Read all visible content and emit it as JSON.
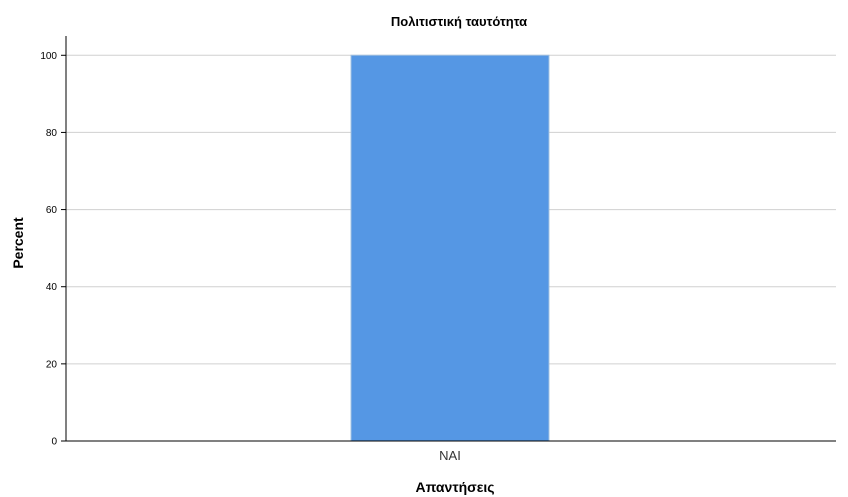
{
  "chart_data": {
    "type": "bar",
    "title": "Πολιτιστική ταυτότητα",
    "xlabel": "Απαντήσεις",
    "ylabel": "Percent",
    "categories": [
      "ΝΑΙ"
    ],
    "values": [
      100
    ],
    "ylim": [
      0,
      105
    ],
    "yticks": [
      0,
      20,
      40,
      60,
      80,
      100
    ],
    "grid": true,
    "legend": "none",
    "bar_color": "#5597e4",
    "bar_edge_color": "#9bbde0"
  }
}
